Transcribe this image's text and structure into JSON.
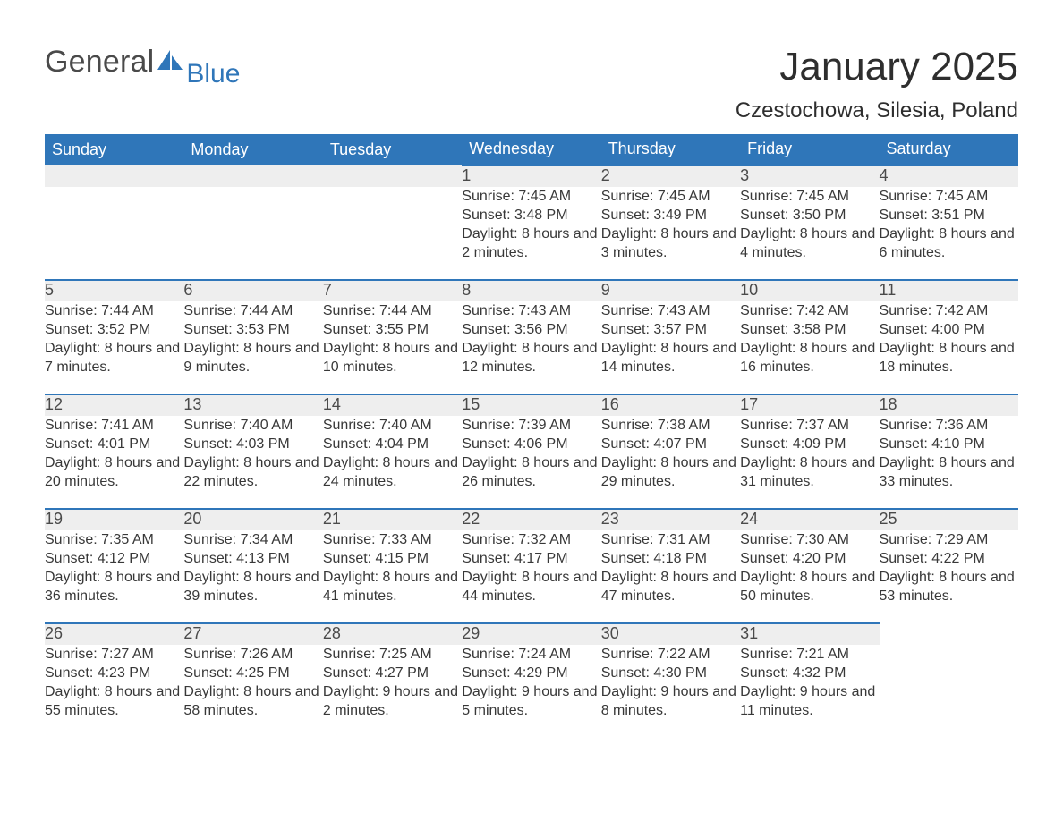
{
  "logo": {
    "text_general": "General",
    "text_blue": "Blue",
    "sail_color": "#2f76b9",
    "general_color": "#4a4a4a"
  },
  "title": "January 2025",
  "subtitle": "Czestochowa, Silesia, Poland",
  "colors": {
    "header_bg": "#2f76b9",
    "header_text": "#ffffff",
    "daynum_bg": "#eeeeee",
    "daynum_border": "#2f76b9",
    "body_text": "#383838",
    "page_bg": "#ffffff"
  },
  "day_headers": [
    "Sunday",
    "Monday",
    "Tuesday",
    "Wednesday",
    "Thursday",
    "Friday",
    "Saturday"
  ],
  "weeks": [
    [
      null,
      null,
      null,
      {
        "n": "1",
        "sunrise": "7:45 AM",
        "sunset": "3:48 PM",
        "daylight": "8 hours and 2 minutes."
      },
      {
        "n": "2",
        "sunrise": "7:45 AM",
        "sunset": "3:49 PM",
        "daylight": "8 hours and 3 minutes."
      },
      {
        "n": "3",
        "sunrise": "7:45 AM",
        "sunset": "3:50 PM",
        "daylight": "8 hours and 4 minutes."
      },
      {
        "n": "4",
        "sunrise": "7:45 AM",
        "sunset": "3:51 PM",
        "daylight": "8 hours and 6 minutes."
      }
    ],
    [
      {
        "n": "5",
        "sunrise": "7:44 AM",
        "sunset": "3:52 PM",
        "daylight": "8 hours and 7 minutes."
      },
      {
        "n": "6",
        "sunrise": "7:44 AM",
        "sunset": "3:53 PM",
        "daylight": "8 hours and 9 minutes."
      },
      {
        "n": "7",
        "sunrise": "7:44 AM",
        "sunset": "3:55 PM",
        "daylight": "8 hours and 10 minutes."
      },
      {
        "n": "8",
        "sunrise": "7:43 AM",
        "sunset": "3:56 PM",
        "daylight": "8 hours and 12 minutes."
      },
      {
        "n": "9",
        "sunrise": "7:43 AM",
        "sunset": "3:57 PM",
        "daylight": "8 hours and 14 minutes."
      },
      {
        "n": "10",
        "sunrise": "7:42 AM",
        "sunset": "3:58 PM",
        "daylight": "8 hours and 16 minutes."
      },
      {
        "n": "11",
        "sunrise": "7:42 AM",
        "sunset": "4:00 PM",
        "daylight": "8 hours and 18 minutes."
      }
    ],
    [
      {
        "n": "12",
        "sunrise": "7:41 AM",
        "sunset": "4:01 PM",
        "daylight": "8 hours and 20 minutes."
      },
      {
        "n": "13",
        "sunrise": "7:40 AM",
        "sunset": "4:03 PM",
        "daylight": "8 hours and 22 minutes."
      },
      {
        "n": "14",
        "sunrise": "7:40 AM",
        "sunset": "4:04 PM",
        "daylight": "8 hours and 24 minutes."
      },
      {
        "n": "15",
        "sunrise": "7:39 AM",
        "sunset": "4:06 PM",
        "daylight": "8 hours and 26 minutes."
      },
      {
        "n": "16",
        "sunrise": "7:38 AM",
        "sunset": "4:07 PM",
        "daylight": "8 hours and 29 minutes."
      },
      {
        "n": "17",
        "sunrise": "7:37 AM",
        "sunset": "4:09 PM",
        "daylight": "8 hours and 31 minutes."
      },
      {
        "n": "18",
        "sunrise": "7:36 AM",
        "sunset": "4:10 PM",
        "daylight": "8 hours and 33 minutes."
      }
    ],
    [
      {
        "n": "19",
        "sunrise": "7:35 AM",
        "sunset": "4:12 PM",
        "daylight": "8 hours and 36 minutes."
      },
      {
        "n": "20",
        "sunrise": "7:34 AM",
        "sunset": "4:13 PM",
        "daylight": "8 hours and 39 minutes."
      },
      {
        "n": "21",
        "sunrise": "7:33 AM",
        "sunset": "4:15 PM",
        "daylight": "8 hours and 41 minutes."
      },
      {
        "n": "22",
        "sunrise": "7:32 AM",
        "sunset": "4:17 PM",
        "daylight": "8 hours and 44 minutes."
      },
      {
        "n": "23",
        "sunrise": "7:31 AM",
        "sunset": "4:18 PM",
        "daylight": "8 hours and 47 minutes."
      },
      {
        "n": "24",
        "sunrise": "7:30 AM",
        "sunset": "4:20 PM",
        "daylight": "8 hours and 50 minutes."
      },
      {
        "n": "25",
        "sunrise": "7:29 AM",
        "sunset": "4:22 PM",
        "daylight": "8 hours and 53 minutes."
      }
    ],
    [
      {
        "n": "26",
        "sunrise": "7:27 AM",
        "sunset": "4:23 PM",
        "daylight": "8 hours and 55 minutes."
      },
      {
        "n": "27",
        "sunrise": "7:26 AM",
        "sunset": "4:25 PM",
        "daylight": "8 hours and 58 minutes."
      },
      {
        "n": "28",
        "sunrise": "7:25 AM",
        "sunset": "4:27 PM",
        "daylight": "9 hours and 2 minutes."
      },
      {
        "n": "29",
        "sunrise": "7:24 AM",
        "sunset": "4:29 PM",
        "daylight": "9 hours and 5 minutes."
      },
      {
        "n": "30",
        "sunrise": "7:22 AM",
        "sunset": "4:30 PM",
        "daylight": "9 hours and 8 minutes."
      },
      {
        "n": "31",
        "sunrise": "7:21 AM",
        "sunset": "4:32 PM",
        "daylight": "9 hours and 11 minutes."
      },
      null
    ]
  ],
  "labels": {
    "sunrise": "Sunrise: ",
    "sunset": "Sunset: ",
    "daylight": "Daylight: "
  }
}
